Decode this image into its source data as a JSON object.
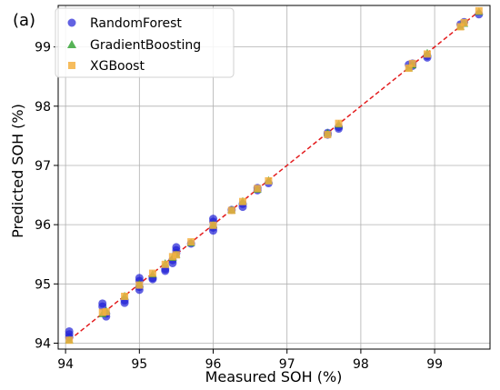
{
  "chart_data": {
    "type": "scatter",
    "panel_label": "(a)",
    "xlabel": "Measured SOH (%)",
    "ylabel": "Predicted SOH (%)",
    "xlim": [
      93.9,
      99.75
    ],
    "ylim": [
      93.9,
      99.7
    ],
    "xticks": [
      94,
      95,
      96,
      97,
      98,
      99
    ],
    "yticks": [
      94,
      95,
      96,
      97,
      98,
      99
    ],
    "grid": true,
    "legend_position": "top-left",
    "reference_line": {
      "x": [
        94.05,
        99.62
      ],
      "y": [
        94.05,
        99.62
      ],
      "color": "#e31a1c",
      "style": "dashed"
    },
    "series": [
      {
        "name": "RandomForest",
        "marker": "circle",
        "color": "#1f1fd6",
        "points": [
          [
            94.05,
            94.2
          ],
          [
            94.05,
            94.15
          ],
          [
            94.05,
            94.1
          ],
          [
            94.5,
            94.67
          ],
          [
            94.5,
            94.62
          ],
          [
            94.55,
            94.5
          ],
          [
            94.55,
            94.45
          ],
          [
            94.8,
            94.72
          ],
          [
            94.8,
            94.68
          ],
          [
            95.0,
            95.1
          ],
          [
            95.0,
            95.05
          ],
          [
            95.0,
            94.95
          ],
          [
            95.0,
            94.9
          ],
          [
            95.18,
            95.1
          ],
          [
            95.18,
            95.08
          ],
          [
            95.35,
            95.25
          ],
          [
            95.35,
            95.22
          ],
          [
            95.45,
            95.4
          ],
          [
            95.45,
            95.35
          ],
          [
            95.5,
            95.62
          ],
          [
            95.5,
            95.57
          ],
          [
            95.5,
            95.52
          ],
          [
            95.7,
            95.68
          ],
          [
            96.0,
            96.1
          ],
          [
            96.0,
            96.05
          ],
          [
            96.0,
            95.95
          ],
          [
            96.0,
            95.9
          ],
          [
            96.25,
            96.25
          ],
          [
            96.4,
            96.35
          ],
          [
            96.4,
            96.3
          ],
          [
            96.6,
            96.62
          ],
          [
            96.6,
            96.58
          ],
          [
            96.75,
            96.7
          ],
          [
            97.55,
            97.55
          ],
          [
            97.55,
            97.52
          ],
          [
            97.7,
            97.65
          ],
          [
            97.7,
            97.62
          ],
          [
            98.65,
            98.7
          ],
          [
            98.7,
            98.72
          ],
          [
            98.7,
            98.68
          ],
          [
            98.9,
            98.85
          ],
          [
            98.9,
            98.82
          ],
          [
            99.35,
            99.38
          ],
          [
            99.4,
            99.42
          ],
          [
            99.6,
            99.55
          ]
        ]
      },
      {
        "name": "GradientBoosting",
        "marker": "triangle",
        "color": "#2ca02c",
        "points": [
          [
            94.05,
            94.06
          ],
          [
            94.5,
            94.5
          ],
          [
            94.55,
            94.55
          ],
          [
            94.8,
            94.8
          ],
          [
            95.0,
            95.0
          ],
          [
            95.18,
            95.17
          ],
          [
            95.35,
            95.35
          ],
          [
            95.45,
            95.45
          ],
          [
            95.5,
            95.5
          ],
          [
            95.7,
            95.7
          ],
          [
            96.0,
            96.0
          ],
          [
            96.25,
            96.25
          ],
          [
            96.4,
            96.4
          ],
          [
            96.6,
            96.6
          ],
          [
            96.75,
            96.75
          ],
          [
            97.55,
            97.55
          ],
          [
            97.7,
            97.7
          ],
          [
            98.65,
            98.65
          ],
          [
            98.7,
            98.7
          ],
          [
            98.9,
            98.9
          ],
          [
            99.35,
            99.35
          ],
          [
            99.4,
            99.4
          ],
          [
            99.6,
            99.6
          ]
        ]
      },
      {
        "name": "XGBoost",
        "marker": "square",
        "color": "#f5b041",
        "points": [
          [
            94.05,
            94.05
          ],
          [
            94.5,
            94.52
          ],
          [
            94.55,
            94.53
          ],
          [
            94.8,
            94.79
          ],
          [
            95.0,
            94.98
          ],
          [
            95.18,
            95.18
          ],
          [
            95.35,
            95.33
          ],
          [
            95.45,
            95.46
          ],
          [
            95.5,
            95.49
          ],
          [
            95.7,
            95.71
          ],
          [
            96.0,
            95.99
          ],
          [
            96.25,
            96.24
          ],
          [
            96.4,
            96.39
          ],
          [
            96.6,
            96.61
          ],
          [
            96.75,
            96.74
          ],
          [
            97.55,
            97.52
          ],
          [
            97.7,
            97.71
          ],
          [
            98.65,
            98.64
          ],
          [
            98.7,
            98.72
          ],
          [
            98.9,
            98.88
          ],
          [
            99.35,
            99.34
          ],
          [
            99.4,
            99.41
          ],
          [
            99.6,
            99.61
          ]
        ]
      }
    ]
  }
}
